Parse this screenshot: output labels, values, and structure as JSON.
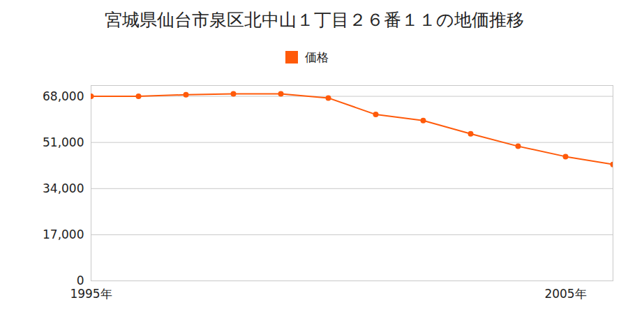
{
  "chart_data": {
    "type": "line",
    "title": "宮城県仙台市泉区北中山１丁目２６番１１の地価推移",
    "x": [
      1995,
      1996,
      1997,
      1998,
      1999,
      2000,
      2001,
      2002,
      2003,
      2004,
      2005,
      2006
    ],
    "series": [
      {
        "name": "価格",
        "color": "#ff5a0a",
        "marker": "circle",
        "values": [
          68000,
          68000,
          68600,
          68900,
          68900,
          67400,
          61300,
          59100,
          54200,
          49600,
          45800,
          42900
        ]
      }
    ],
    "xlim": [
      1995,
      2006
    ],
    "xticks": [
      {
        "value": 1995,
        "label": "1995年"
      },
      {
        "value": 2005,
        "label": "2005年"
      }
    ],
    "ylim": [
      0,
      72000
    ],
    "yticks": [
      0,
      {
        "value": 17000,
        "label": "17,000"
      },
      {
        "value": 34000,
        "label": "34,000"
      },
      {
        "value": 51000,
        "label": "51,000"
      },
      {
        "value": 68000,
        "label": "68,000"
      }
    ],
    "grid": true,
    "legend": "top"
  }
}
